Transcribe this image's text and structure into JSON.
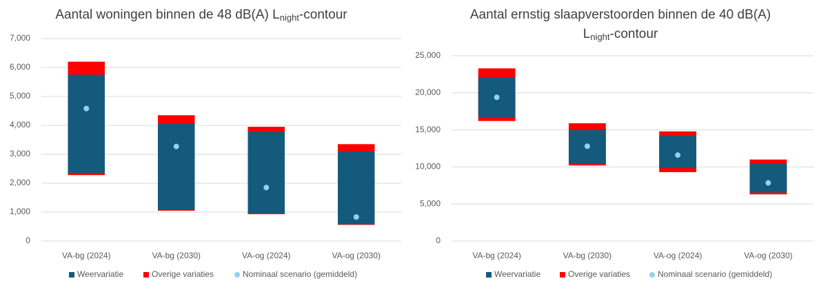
{
  "chart_data": [
    {
      "type": "floating-bar",
      "title": [
        [
          "Aantal woningen binnen de 48 dB(A) L",
          "night",
          "-contour"
        ]
      ],
      "categories": [
        "VA-bg (2024)",
        "VA-bg (2030)",
        "VA-og (2024)",
        "VA-og (2030)"
      ],
      "series": [
        {
          "name": "Weervariatie",
          "color": "#135a7c",
          "low": [
            2350,
            1080,
            960,
            580
          ],
          "high": [
            5750,
            4050,
            3780,
            3100
          ]
        },
        {
          "name": "Overige variaties",
          "color": "#ff0000",
          "low": [
            2280,
            1050,
            930,
            560
          ],
          "high": [
            6200,
            4350,
            3950,
            3350
          ]
        }
      ],
      "points": {
        "name": "Nominaal scenario (gemiddeld)",
        "color": "#8fd3f0",
        "values": [
          4580,
          3270,
          1850,
          830
        ]
      },
      "ylim": [
        0,
        7000
      ],
      "yticks": [
        0,
        {
          "value": 1000,
          "label": "1,000"
        },
        {
          "value": 2000,
          "label": "2,000"
        },
        {
          "value": 3000,
          "label": "3,000"
        },
        {
          "value": 4000,
          "label": "4,000"
        },
        {
          "value": 5000,
          "label": "5,000"
        },
        {
          "value": 6000,
          "label": "6,000"
        },
        {
          "value": 7000,
          "label": "7,000"
        }
      ],
      "grid": true
    },
    {
      "type": "floating-bar",
      "title": [
        [
          "Aantal ernstig slaapverstoorden binnen de 40 dB(A)"
        ],
        [
          "L",
          "night",
          "-contour"
        ]
      ],
      "categories": [
        "VA-bg (2024)",
        "VA-bg (2030)",
        "VA-og (2024)",
        "VA-og (2030)"
      ],
      "series": [
        {
          "name": "Weervariatie",
          "color": "#135a7c",
          "low": [
            16700,
            10450,
            9850,
            6550
          ],
          "high": [
            22100,
            15000,
            14200,
            10450
          ]
        },
        {
          "name": "Overige variaties",
          "color": "#ff0000",
          "low": [
            16200,
            10200,
            9300,
            6300
          ],
          "high": [
            23300,
            15900,
            14800,
            11000
          ]
        }
      ],
      "points": {
        "name": "Nominaal scenario (gemiddeld)",
        "color": "#8fd3f0",
        "values": [
          19400,
          12800,
          11600,
          7850
        ]
      },
      "ylim": [
        0,
        25000
      ],
      "yticks": [
        0,
        {
          "value": 5000,
          "label": "5,000"
        },
        {
          "value": 10000,
          "label": "10,000"
        },
        {
          "value": 15000,
          "label": "15,000"
        },
        {
          "value": 20000,
          "label": "20,000"
        },
        {
          "value": 25000,
          "label": "25,000"
        }
      ],
      "grid": true
    }
  ]
}
